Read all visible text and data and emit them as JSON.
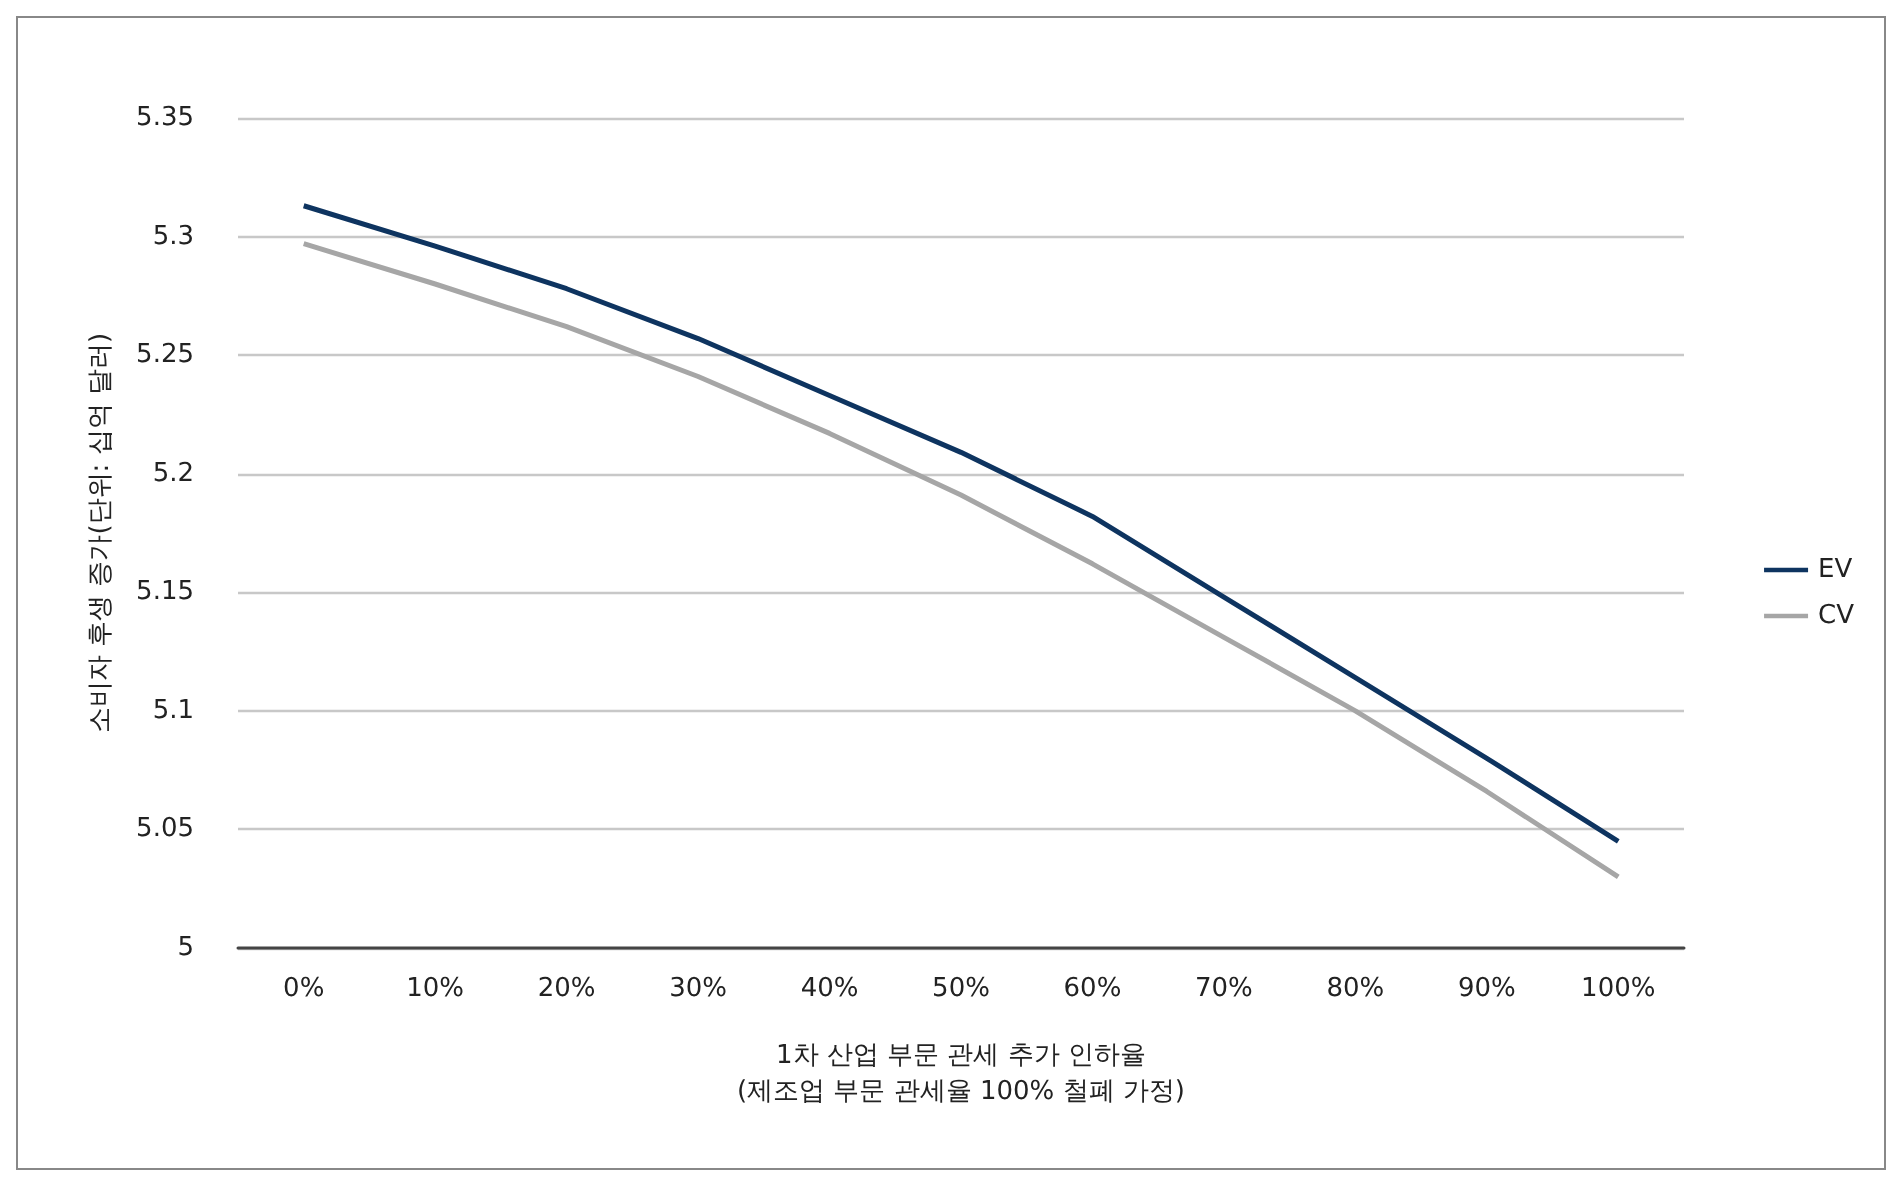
{
  "chart_data": {
    "type": "line",
    "xlabel": "1차 산업 부문 관세 추가 인하율\n(제조업 부문 관세율 100% 철폐 가정)",
    "ylabel": "소비자 후생 증가(단위: 십억 달러)",
    "categories": [
      "0%",
      "10%",
      "20%",
      "30%",
      "40%",
      "50%",
      "60%",
      "70%",
      "80%",
      "90%",
      "100%"
    ],
    "series": [
      {
        "name": "EV",
        "color": "#0e3460",
        "values": [
          5.313,
          5.296,
          5.278,
          5.257,
          5.233,
          5.209,
          5.182,
          5.148,
          5.114,
          5.08,
          5.045
        ]
      },
      {
        "name": "CV",
        "color": "#a6a6a6",
        "values": [
          5.297,
          5.28,
          5.262,
          5.241,
          5.217,
          5.191,
          5.162,
          5.131,
          5.1,
          5.066,
          5.03
        ]
      }
    ],
    "ylim": [
      5,
      5.35
    ],
    "yticks": [
      5,
      5.05,
      5.1,
      5.15,
      5.2,
      5.25,
      5.3,
      5.35
    ],
    "grid": "y",
    "legend": "right",
    "marker": "none",
    "line_style": "solid"
  }
}
